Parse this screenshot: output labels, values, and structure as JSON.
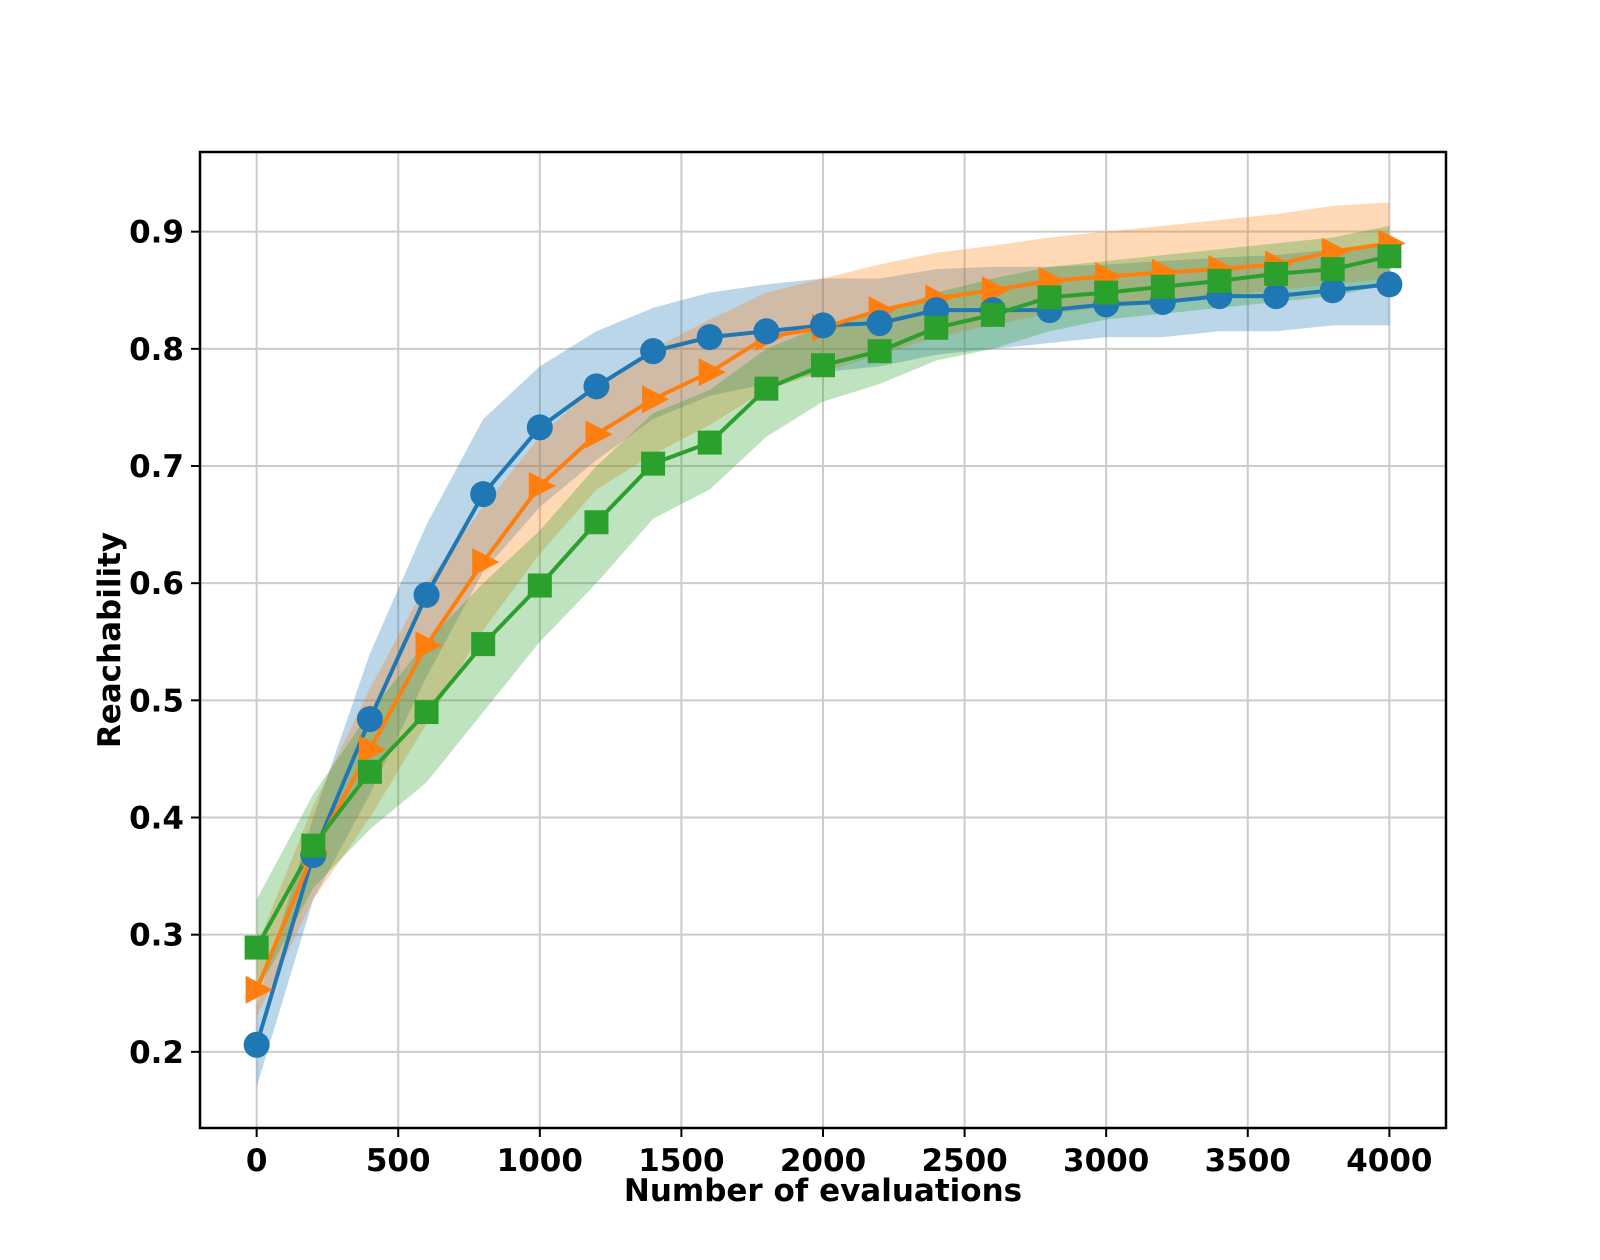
{
  "chart_data": {
    "type": "line",
    "title": "",
    "xlabel": "Number of evaluations",
    "ylabel": "Reachability",
    "xlim": [
      -200,
      4200
    ],
    "ylim": [
      0.135,
      0.968
    ],
    "xticks": [
      0,
      500,
      1000,
      1500,
      2000,
      2500,
      3000,
      3500,
      4000
    ],
    "yticks": [
      0.2,
      0.3,
      0.4,
      0.5,
      0.6,
      0.7,
      0.8,
      0.9
    ],
    "grid": true,
    "legend": "none",
    "x": [
      0,
      200,
      400,
      600,
      800,
      1000,
      1200,
      1400,
      1600,
      1800,
      2000,
      2200,
      2400,
      2600,
      2800,
      3000,
      3200,
      3400,
      3600,
      3800,
      4000
    ],
    "series": [
      {
        "color": "#1f77b4",
        "marker": "circle",
        "values": [
          0.206,
          0.368,
          0.484,
          0.59,
          0.676,
          0.733,
          0.768,
          0.798,
          0.81,
          0.815,
          0.82,
          0.822,
          0.833,
          0.833,
          0.833,
          0.838,
          0.84,
          0.845,
          0.845,
          0.85,
          0.855
        ],
        "lower": [
          0.17,
          0.33,
          0.42,
          0.52,
          0.61,
          0.665,
          0.705,
          0.74,
          0.76,
          0.77,
          0.78,
          0.785,
          0.795,
          0.8,
          0.805,
          0.81,
          0.81,
          0.815,
          0.815,
          0.82,
          0.82
        ],
        "upper": [
          0.24,
          0.4,
          0.54,
          0.65,
          0.74,
          0.785,
          0.815,
          0.835,
          0.848,
          0.855,
          0.86,
          0.86,
          0.868,
          0.87,
          0.87,
          0.872,
          0.875,
          0.878,
          0.88,
          0.885,
          0.89
        ]
      },
      {
        "color": "#ff7f0e",
        "marker": "triangle-right",
        "values": [
          0.253,
          0.37,
          0.458,
          0.547,
          0.618,
          0.683,
          0.727,
          0.757,
          0.78,
          0.81,
          0.818,
          0.833,
          0.843,
          0.85,
          0.858,
          0.862,
          0.865,
          0.868,
          0.872,
          0.883,
          0.89
        ],
        "lower": [
          0.23,
          0.33,
          0.4,
          0.48,
          0.56,
          0.625,
          0.68,
          0.71,
          0.735,
          0.765,
          0.78,
          0.795,
          0.81,
          0.82,
          0.83,
          0.835,
          0.84,
          0.845,
          0.85,
          0.855,
          0.86
        ],
        "upper": [
          0.29,
          0.41,
          0.51,
          0.6,
          0.665,
          0.725,
          0.77,
          0.8,
          0.825,
          0.848,
          0.86,
          0.872,
          0.882,
          0.888,
          0.895,
          0.9,
          0.905,
          0.91,
          0.915,
          0.922,
          0.925
        ]
      },
      {
        "color": "#2ca02c",
        "marker": "square",
        "values": [
          0.289,
          0.376,
          0.439,
          0.49,
          0.548,
          0.598,
          0.652,
          0.702,
          0.72,
          0.766,
          0.786,
          0.798,
          0.818,
          0.829,
          0.844,
          0.848,
          0.853,
          0.858,
          0.864,
          0.868,
          0.879
        ],
        "lower": [
          0.25,
          0.34,
          0.39,
          0.43,
          0.49,
          0.55,
          0.6,
          0.655,
          0.68,
          0.725,
          0.755,
          0.77,
          0.79,
          0.8,
          0.815,
          0.825,
          0.83,
          0.835,
          0.84,
          0.845,
          0.855
        ],
        "upper": [
          0.33,
          0.42,
          0.49,
          0.55,
          0.6,
          0.645,
          0.7,
          0.745,
          0.765,
          0.8,
          0.82,
          0.83,
          0.848,
          0.86,
          0.87,
          0.875,
          0.88,
          0.885,
          0.89,
          0.895,
          0.905
        ]
      }
    ]
  }
}
